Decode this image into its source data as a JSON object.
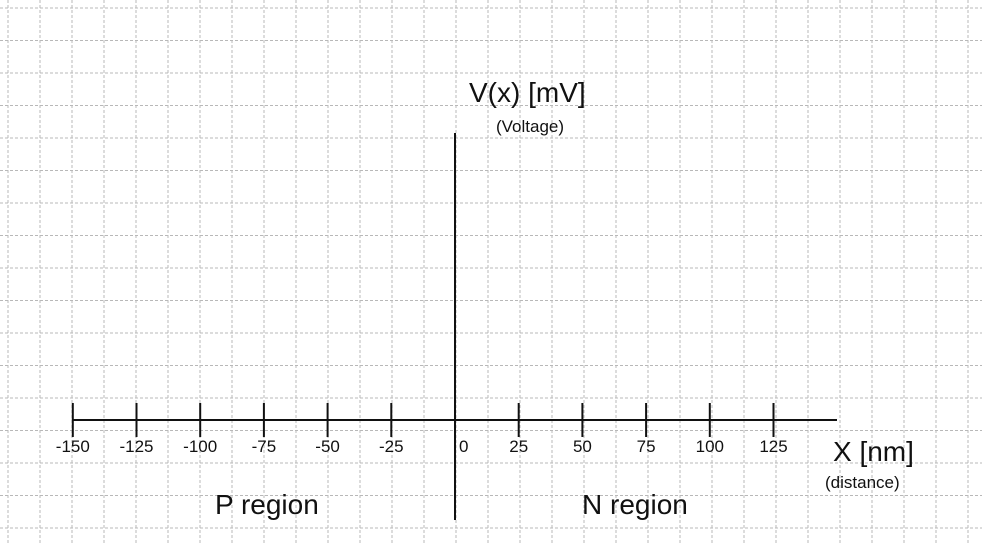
{
  "chart_data": {
    "type": "diagram",
    "y_axis": {
      "label": "V(x) [mV]",
      "sublabel": "(Voltage)"
    },
    "x_axis": {
      "label": "X [nm]",
      "sublabel": "(distance)",
      "ticks": [
        -150,
        -125,
        -100,
        -75,
        -50,
        -25,
        0,
        25,
        50,
        75,
        100,
        125
      ],
      "tick_labels": [
        "-150",
        "-125",
        "-100",
        "-75",
        "-50",
        "-25",
        "0",
        "25",
        "50",
        "75",
        "100",
        "125"
      ]
    },
    "regions": [
      {
        "label": "P region",
        "x_range": [
          -150,
          0
        ]
      },
      {
        "label": "N region",
        "x_range": [
          0,
          150
        ]
      }
    ],
    "grid": true
  },
  "colors": {
    "background": "#ffffff",
    "grid": "#b8b8b8",
    "axis": "#111111",
    "text": "#111111"
  }
}
